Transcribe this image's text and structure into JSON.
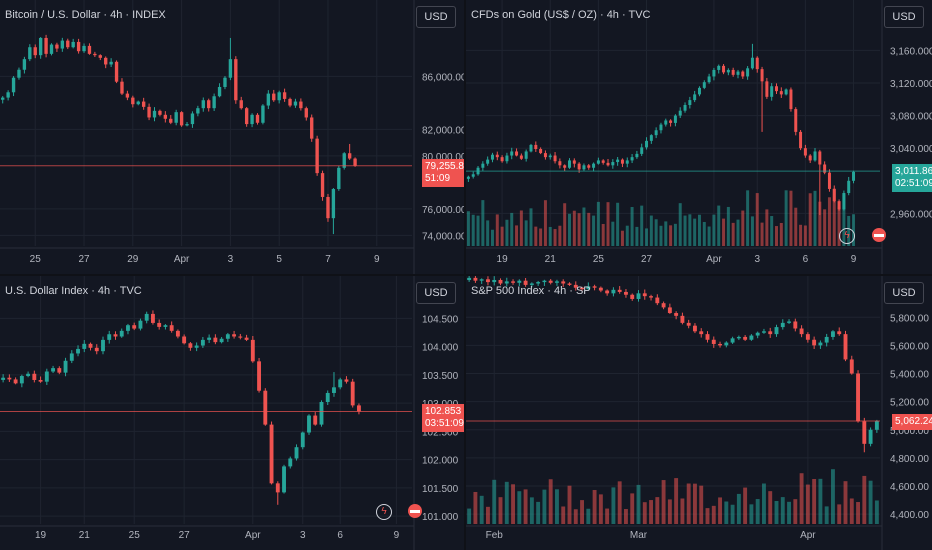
{
  "colors": {
    "up": "#26a69a",
    "down": "#ef5350",
    "bg": "#131722",
    "grid": "#1f2430",
    "text": "#b2b5be",
    "gold_badge": "#26a69a"
  },
  "chart_data": [
    {
      "type": "candlestick",
      "title": "Bitcoin / U.S. Dollar · 4h · INDEX",
      "currency": "USD",
      "y_ticks": [
        74000,
        76000,
        80000,
        82000,
        86000
      ],
      "y_tick_labels": [
        "74,000.00",
        "76,000.00",
        "80,000.00",
        "82,000.00",
        "86,000.00"
      ],
      "ylim": [
        73200,
        89500
      ],
      "x_ticks": [
        {
          "label": "25",
          "i": 6
        },
        {
          "label": "27",
          "i": 15
        },
        {
          "label": "29",
          "i": 24
        },
        {
          "label": "Apr",
          "i": 33
        },
        {
          "label": "3",
          "i": 42
        },
        {
          "label": "5",
          "i": 51
        },
        {
          "label": "7",
          "i": 60
        },
        {
          "label": "9",
          "i": 69
        }
      ],
      "n_slots": 76,
      "last_price": 79255.88,
      "badge": {
        "price": "79,255.88",
        "timer": "51:09",
        "color": "#ef5350"
      },
      "close_path": [
        84400,
        84800,
        85900,
        86500,
        87300,
        88200,
        87600,
        88900,
        87700,
        88400,
        88100,
        88700,
        88200,
        88600,
        87900,
        88300,
        87700,
        87600,
        87400,
        86900,
        87100,
        85600,
        84700,
        84400,
        83900,
        84100,
        83700,
        82900,
        83400,
        83100,
        82800,
        82500,
        83300,
        82300,
        82400,
        83200,
        83600,
        84200,
        83600,
        84500,
        85200,
        85900,
        87300,
        84200,
        83600,
        82400,
        83100,
        82500,
        83800,
        84700,
        84200,
        84800,
        84300,
        83800,
        84100,
        83600,
        82900,
        81300,
        78700,
        76900,
        75300,
        77500,
        79100,
        80200,
        79800,
        79255
      ],
      "spikes": [
        {
          "i": 42,
          "high": 88900
        },
        {
          "i": 61,
          "low": 74100
        },
        {
          "i": 64,
          "high": 80900
        }
      ]
    },
    {
      "type": "candlestick",
      "title": "CFDs on Gold (US$ / OZ) · 4h · TVC",
      "currency": "USD",
      "y_ticks": [
        2960,
        3040,
        3080,
        3120,
        3160
      ],
      "y_tick_labels": [
        "2,960.000",
        "3,040.000",
        "3,080.000",
        "3,120.000",
        "3,160.000"
      ],
      "ylim": [
        2920,
        3185
      ],
      "x_ticks": [
        {
          "label": "19",
          "i": 7
        },
        {
          "label": "21",
          "i": 17
        },
        {
          "label": "25",
          "i": 27
        },
        {
          "label": "27",
          "i": 37
        },
        {
          "label": "Apr",
          "i": 51
        },
        {
          "label": "3",
          "i": 60
        },
        {
          "label": "6",
          "i": 70
        },
        {
          "label": "9",
          "i": 80
        }
      ],
      "n_slots": 86,
      "last_price": 3011.86,
      "badge": {
        "price": "3,011.860",
        "timer": "02:51:09",
        "color": "#26a69a"
      },
      "volume": true,
      "close_path": [
        3005,
        3008,
        3016,
        3021,
        3026,
        3032,
        3029,
        3024,
        3031,
        3036,
        3031,
        3027,
        3036,
        3044,
        3039,
        3034,
        3029,
        3031,
        3024,
        3019,
        3016,
        3025,
        3021,
        3014,
        3019,
        3016,
        3021,
        3025,
        3022,
        3019,
        3023,
        3026,
        3021,
        3025,
        3029,
        3033,
        3041,
        3049,
        3056,
        3062,
        3069,
        3074,
        3071,
        3080,
        3086,
        3093,
        3099,
        3106,
        3114,
        3121,
        3128,
        3136,
        3141,
        3133,
        3136,
        3130,
        3134,
        3128,
        3138,
        3151,
        3137,
        3122,
        3103,
        3116,
        3110,
        3106,
        3112,
        3088,
        3060,
        3040,
        3031,
        3025,
        3036,
        3020,
        3010,
        2990,
        2975,
        2965,
        2985,
        3000,
        3011
      ],
      "spikes": [
        {
          "i": 59,
          "high": 3168
        },
        {
          "i": 61,
          "low": 3060
        },
        {
          "i": 73,
          "low": 2958
        }
      ]
    },
    {
      "type": "candlestick",
      "title": "U.S. Dollar Index · 4h · TVC",
      "currency": "USD",
      "y_ticks": [
        101,
        101.5,
        102,
        102.5,
        103,
        103.5,
        104,
        104.5
      ],
      "y_tick_labels": [
        "101.000",
        "101.500",
        "102.000",
        "102.500",
        "103.000",
        "103.500",
        "104.000",
        "104.500"
      ],
      "ylim": [
        100.86,
        104.72
      ],
      "x_ticks": [
        {
          "label": "19",
          "i": 6
        },
        {
          "label": "21",
          "i": 13
        },
        {
          "label": "25",
          "i": 21
        },
        {
          "label": "27",
          "i": 29
        },
        {
          "label": "Apr",
          "i": 40
        },
        {
          "label": "3",
          "i": 48
        },
        {
          "label": "6",
          "i": 54
        },
        {
          "label": "9",
          "i": 63
        }
      ],
      "n_slots": 66,
      "last_price": 102.853,
      "badge": {
        "price": "102.853",
        "timer": "03:51:09",
        "color": "#ef5350"
      },
      "close_path": [
        103.45,
        103.42,
        103.35,
        103.48,
        103.52,
        103.41,
        103.38,
        103.56,
        103.62,
        103.54,
        103.75,
        103.88,
        103.96,
        104.05,
        103.98,
        103.92,
        104.12,
        104.22,
        104.18,
        104.28,
        104.38,
        104.32,
        104.46,
        104.58,
        104.42,
        104.35,
        104.38,
        104.28,
        104.18,
        104.06,
        103.98,
        104.02,
        104.12,
        104.16,
        104.08,
        104.14,
        104.22,
        104.18,
        104.16,
        104.12,
        103.74,
        103.22,
        102.62,
        101.58,
        101.42,
        101.88,
        102.02,
        102.22,
        102.48,
        102.78,
        102.62,
        103.02,
        103.18,
        103.28,
        103.42,
        103.38,
        102.96,
        102.853
      ],
      "spikes": [
        {
          "i": 44,
          "low": 101.2
        },
        {
          "i": 53,
          "high": 103.55
        }
      ]
    },
    {
      "type": "candlestick",
      "title": "S&P 500 Index · 4h · SP",
      "currency": "USD",
      "y_ticks": [
        4400,
        4600,
        4800,
        5000,
        5200,
        5400,
        5600,
        5800
      ],
      "y_tick_labels": [
        "4,400.00",
        "4,600.00",
        "4,800.00",
        "5,000.00",
        "5,200.00",
        "5,400.00",
        "5,600.00",
        "5,800.00"
      ],
      "ylim": [
        4330,
        5880
      ],
      "x_ticks": [
        {
          "label": "Feb",
          "i": 4
        },
        {
          "label": "Mar",
          "i": 27
        },
        {
          "label": "Apr",
          "i": 54
        }
      ],
      "n_slots": 66,
      "last_price": 5062.24,
      "badge": {
        "price": "5,062.24",
        "color": "#ef5350"
      },
      "volume": true,
      "close_path": [
        6080,
        6060,
        6070,
        6050,
        6065,
        6040,
        6055,
        6045,
        6060,
        6030,
        6040,
        6050,
        6060,
        6045,
        6055,
        6040,
        6030,
        6010,
        6000,
        6020,
        6010,
        5990,
        5970,
        5995,
        5980,
        5960,
        5930,
        5970,
        5950,
        5940,
        5900,
        5870,
        5830,
        5810,
        5760,
        5740,
        5700,
        5680,
        5640,
        5610,
        5600,
        5620,
        5650,
        5660,
        5640,
        5670,
        5690,
        5700,
        5680,
        5730,
        5760,
        5770,
        5720,
        5680,
        5640,
        5600,
        5620,
        5660,
        5700,
        5680,
        5500,
        5400,
        5060,
        4900,
        5000,
        5062
      ],
      "spikes": [
        {
          "i": 63,
          "low": 4840
        }
      ]
    }
  ],
  "icons": [
    "lightning-icon",
    "flag-icon"
  ]
}
